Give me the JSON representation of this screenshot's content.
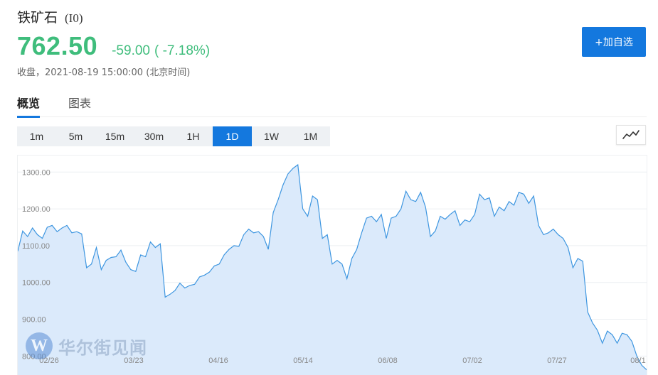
{
  "header": {
    "title": "铁矿石",
    "code": "(I0)",
    "price": "762.50",
    "change": "-59.00",
    "change_pct": "( -7.18%)",
    "status": "收盘，2021-08-19 15:00:00 (北京时间)",
    "add_button_label": "+加自选"
  },
  "tabs": [
    {
      "label": "概览",
      "active": true
    },
    {
      "label": "图表",
      "active": false
    }
  ],
  "periods": [
    {
      "label": "1m",
      "active": false
    },
    {
      "label": "5m",
      "active": false
    },
    {
      "label": "15m",
      "active": false
    },
    {
      "label": "30m",
      "active": false
    },
    {
      "label": "1H",
      "active": false
    },
    {
      "label": "1D",
      "active": true
    },
    {
      "label": "1W",
      "active": false
    },
    {
      "label": "1M",
      "active": false
    }
  ],
  "chart_type_icon": "line-chart-icon",
  "colors": {
    "accent": "#1478de",
    "down": "#3fbd7c",
    "line": "#3e96e0",
    "fill": "#dbeafb"
  },
  "watermark": {
    "logo_letter": "W",
    "text": "华尔街见闻"
  },
  "chart_data": {
    "type": "area",
    "y_ticks": [
      "800.00",
      "900.00",
      "1000.00",
      "1100.00",
      "1200.00",
      "1300.00"
    ],
    "x_ticks": [
      "02/26",
      "03/23",
      "04/16",
      "05/14",
      "06/08",
      "07/02",
      "07/27",
      "08/1"
    ],
    "ylim": [
      762,
      1345
    ],
    "values": [
      1085,
      1140,
      1125,
      1148,
      1130,
      1120,
      1150,
      1155,
      1138,
      1148,
      1155,
      1135,
      1138,
      1132,
      1040,
      1050,
      1095,
      1035,
      1060,
      1068,
      1070,
      1088,
      1055,
      1035,
      1030,
      1075,
      1070,
      1110,
      1095,
      1105,
      960,
      968,
      978,
      998,
      985,
      992,
      995,
      1015,
      1020,
      1028,
      1045,
      1050,
      1075,
      1090,
      1100,
      1098,
      1130,
      1145,
      1135,
      1138,
      1125,
      1090,
      1190,
      1225,
      1265,
      1295,
      1310,
      1320,
      1200,
      1180,
      1235,
      1225,
      1120,
      1130,
      1050,
      1060,
      1050,
      1010,
      1065,
      1090,
      1135,
      1175,
      1180,
      1165,
      1185,
      1120,
      1175,
      1180,
      1200,
      1248,
      1225,
      1220,
      1245,
      1205,
      1125,
      1140,
      1180,
      1172,
      1185,
      1195,
      1155,
      1170,
      1165,
      1185,
      1240,
      1225,
      1230,
      1180,
      1205,
      1195,
      1220,
      1210,
      1245,
      1240,
      1215,
      1235,
      1155,
      1130,
      1135,
      1145,
      1130,
      1120,
      1095,
      1040,
      1065,
      1058,
      920,
      890,
      870,
      835,
      868,
      858,
      835,
      862,
      858,
      840,
      800,
      775,
      762.5
    ]
  }
}
